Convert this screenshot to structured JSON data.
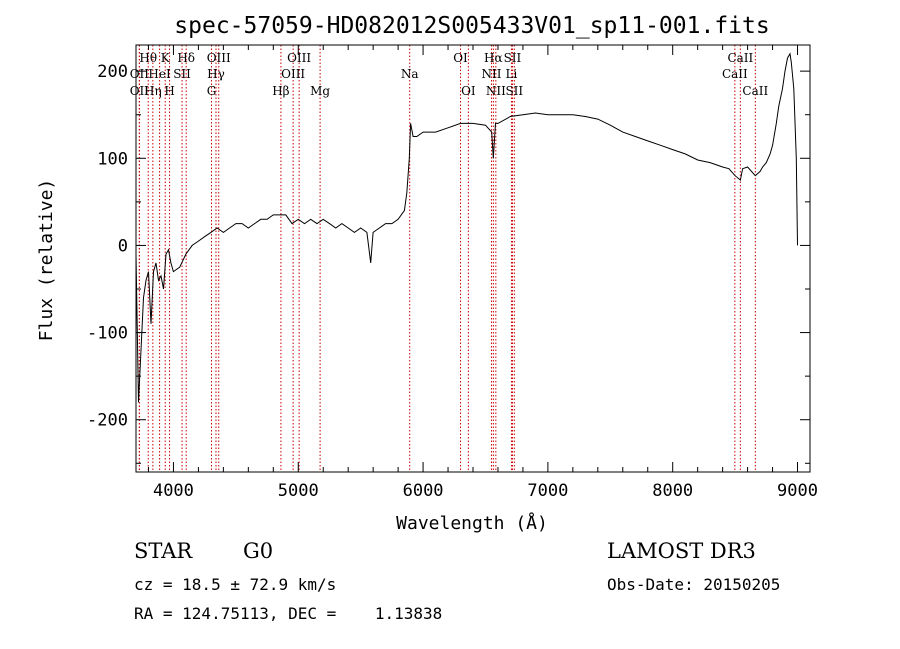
{
  "chart_data": {
    "type": "line",
    "title": "spec-57059-HD082012S005433V01_sp11-001.fits",
    "xlabel": "Wavelength (Å)",
    "ylabel": "Flux (relative)",
    "xlim": [
      3700,
      9100
    ],
    "ylim": [
      -260,
      230
    ],
    "x_ticks": [
      4000,
      5000,
      6000,
      7000,
      8000,
      9000
    ],
    "y_ticks": [
      -200,
      -100,
      0,
      100,
      200
    ],
    "series": [
      {
        "name": "spectrum",
        "x": [
          3700,
          3720,
          3740,
          3760,
          3780,
          3800,
          3820,
          3840,
          3860,
          3880,
          3900,
          3920,
          3940,
          3960,
          3980,
          4000,
          4050,
          4100,
          4150,
          4200,
          4250,
          4300,
          4350,
          4400,
          4450,
          4500,
          4550,
          4600,
          4650,
          4700,
          4750,
          4800,
          4850,
          4900,
          4950,
          5000,
          5050,
          5100,
          5150,
          5200,
          5250,
          5300,
          5350,
          5400,
          5450,
          5500,
          5550,
          5580,
          5600,
          5650,
          5700,
          5750,
          5800,
          5850,
          5870,
          5890,
          5900,
          5920,
          5950,
          6000,
          6100,
          6200,
          6300,
          6400,
          6500,
          6550,
          6563,
          6580,
          6600,
          6700,
          6800,
          6900,
          7000,
          7100,
          7200,
          7300,
          7400,
          7500,
          7600,
          7700,
          7800,
          7900,
          8000,
          8100,
          8200,
          8300,
          8400,
          8450,
          8500,
          8542,
          8560,
          8600,
          8662,
          8700,
          8720,
          8750,
          8780,
          8800,
          8830,
          8850,
          8880,
          8900,
          8920,
          8940,
          8950,
          8970,
          8990,
          9000
        ],
        "y": [
          -10,
          -180,
          -120,
          -60,
          -40,
          -30,
          -90,
          -30,
          -20,
          -40,
          -35,
          -50,
          -10,
          -5,
          -20,
          -30,
          -25,
          -10,
          0,
          5,
          10,
          15,
          20,
          15,
          20,
          25,
          25,
          20,
          25,
          30,
          30,
          35,
          35,
          35,
          25,
          30,
          25,
          30,
          25,
          30,
          25,
          20,
          25,
          20,
          15,
          20,
          15,
          -20,
          15,
          20,
          25,
          25,
          30,
          40,
          60,
          100,
          140,
          125,
          125,
          130,
          130,
          135,
          140,
          140,
          138,
          130,
          100,
          140,
          140,
          148,
          150,
          152,
          150,
          150,
          150,
          148,
          145,
          138,
          130,
          125,
          120,
          115,
          110,
          105,
          98,
          95,
          90,
          88,
          80,
          75,
          88,
          90,
          80,
          85,
          90,
          95,
          105,
          115,
          140,
          160,
          180,
          200,
          215,
          220,
          210,
          180,
          100,
          0
        ]
      }
    ],
    "lines": [
      {
        "label": "Hθ",
        "x": 3798,
        "row": 1
      },
      {
        "label": "OII",
        "x": 3727,
        "row": 2
      },
      {
        "label": "OII",
        "x": 3727,
        "row": 3
      },
      {
        "label": "K",
        "x": 3934,
        "row": 1
      },
      {
        "label": "Hδ",
        "x": 4102,
        "row": 1
      },
      {
        "label": "OIII",
        "x": 4363,
        "row": 1
      },
      {
        "label": "HeI",
        "x": 3889,
        "row": 2
      },
      {
        "label": "SII",
        "x": 4069,
        "row": 2
      },
      {
        "label": "Hγ",
        "x": 4341,
        "row": 2
      },
      {
        "label": "Hη",
        "x": 3835,
        "row": 3
      },
      {
        "label": "H",
        "x": 3969,
        "row": 3
      },
      {
        "label": "G",
        "x": 4305,
        "row": 3
      },
      {
        "label": "OIII",
        "x": 5007,
        "row": 1
      },
      {
        "label": "OIII",
        "x": 4959,
        "row": 2
      },
      {
        "label": "Hβ",
        "x": 4861,
        "row": 3
      },
      {
        "label": "Mg",
        "x": 5175,
        "row": 3
      },
      {
        "label": "Na",
        "x": 5893,
        "row": 2
      },
      {
        "label": "OI",
        "x": 6300,
        "row": 1
      },
      {
        "label": "OI",
        "x": 6363,
        "row": 3
      },
      {
        "label": "Hα",
        "x": 6563,
        "row": 1
      },
      {
        "label": "SII",
        "x": 6716,
        "row": 1
      },
      {
        "label": "NII",
        "x": 6548,
        "row": 2
      },
      {
        "label": "Li",
        "x": 6708,
        "row": 2
      },
      {
        "label": "NII",
        "x": 6583,
        "row": 3
      },
      {
        "label": "SII",
        "x": 6731,
        "row": 3
      },
      {
        "label": "CaII",
        "x": 8542,
        "row": 1
      },
      {
        "label": "CaII",
        "x": 8498,
        "row": 2
      },
      {
        "label": "CaII",
        "x": 8662,
        "row": 3
      }
    ]
  },
  "info": {
    "object_class": "STAR",
    "subclass": "G0",
    "survey": "LAMOST DR3",
    "cz_line": "cz = 18.5 ± 72.9 km/s",
    "obs_date_line": "Obs-Date: 20150205",
    "coords_line": "RA = 124.75113, DEC =    1.13838"
  },
  "colors": {
    "spectrum": "#000000",
    "marker_lines": "#cc0000",
    "axes": "#000000",
    "background": "#ffffff"
  }
}
